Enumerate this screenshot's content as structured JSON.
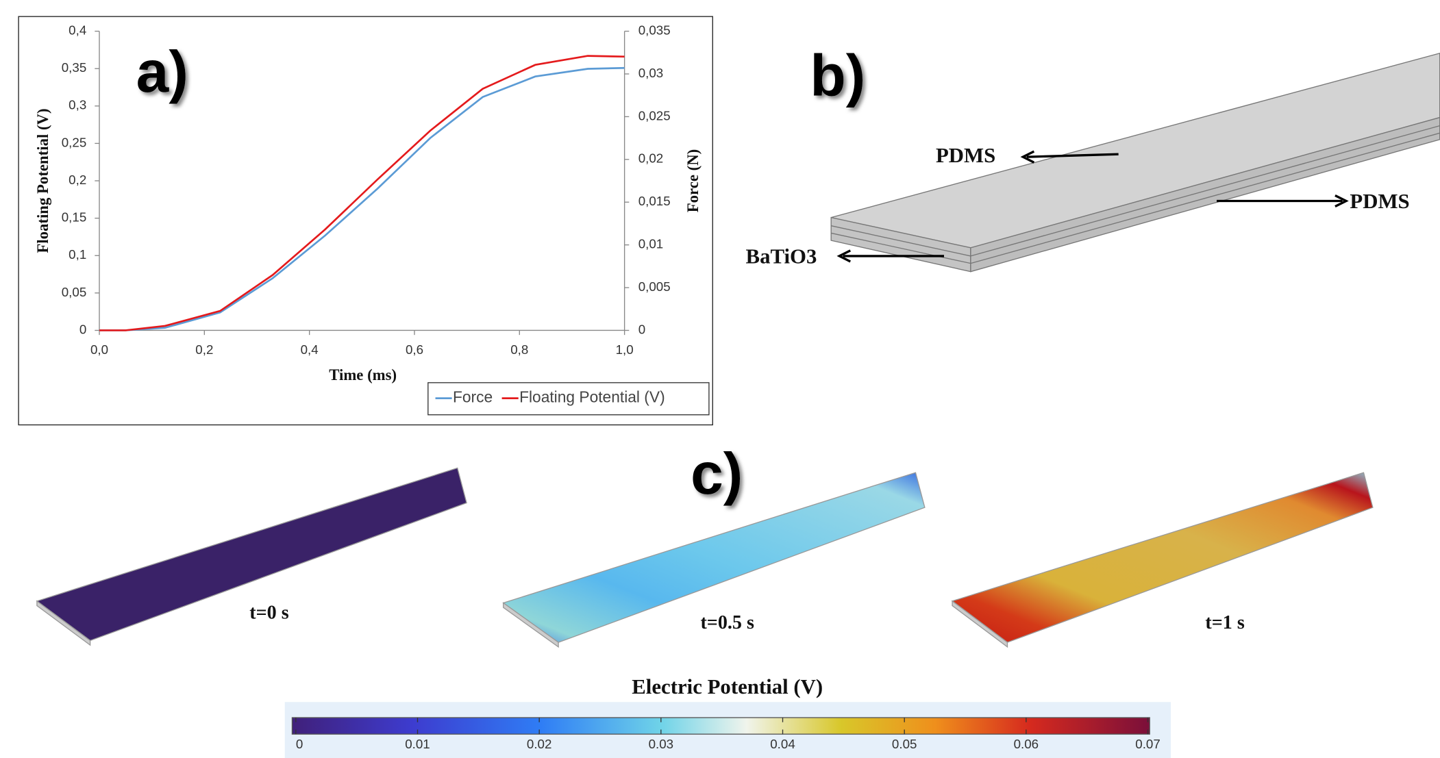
{
  "chart_data": {
    "type": "line",
    "panel_label": "a)",
    "xlabel": "Time (ms)",
    "ylabel": "Floating  Potential (V)",
    "y2label": "Force (N)",
    "x": [
      0,
      0.05,
      0.125,
      0.23,
      0.33,
      0.43,
      0.53,
      0.63,
      0.73,
      0.83,
      0.93,
      1.0
    ],
    "series": [
      {
        "name": "Force",
        "color": "#5b9bd5",
        "axis": "y2",
        "values": [
          0,
          0,
          0.0003,
          0.0021,
          0.0061,
          0.0111,
          0.0166,
          0.0225,
          0.0273,
          0.0297,
          0.0306,
          0.0307
        ]
      },
      {
        "name": "Floating Potential (V)",
        "color": "#e41a1c",
        "values": [
          0,
          0,
          0.006,
          0.026,
          0.074,
          0.135,
          0.202,
          0.267,
          0.323,
          0.355,
          0.367,
          0.366
        ]
      }
    ],
    "xlim": [
      0,
      1.0
    ],
    "xticks": [
      {
        "value": 0,
        "label": "0,0"
      },
      {
        "value": 0.2,
        "label": "0,2"
      },
      {
        "value": 0.4,
        "label": "0,4"
      },
      {
        "value": 0.6,
        "label": "0,6"
      },
      {
        "value": 0.8,
        "label": "0,8"
      },
      {
        "value": 1.0,
        "label": "1,0"
      }
    ],
    "ylim": [
      0,
      0.4
    ],
    "yticks": [
      0,
      {
        "value": 0.05,
        "label": "0,05"
      },
      {
        "value": 0.1,
        "label": "0,1"
      },
      {
        "value": 0.15,
        "label": "0,15"
      },
      {
        "value": 0.2,
        "label": "0,2"
      },
      {
        "value": 0.25,
        "label": "0,25"
      },
      {
        "value": 0.3,
        "label": "0,3"
      },
      {
        "value": 0.35,
        "label": "0,35"
      },
      {
        "value": 0.4,
        "label": "0,4"
      }
    ],
    "y2lim": [
      0,
      0.035
    ],
    "y2ticks": [
      0,
      {
        "value": 0.005,
        "label": "0,005"
      },
      {
        "value": 0.01,
        "label": "0,01"
      },
      {
        "value": 0.015,
        "label": "0,015"
      },
      {
        "value": 0.02,
        "label": "0,02"
      },
      {
        "value": 0.025,
        "label": "0,025"
      },
      {
        "value": 0.03,
        "label": "0,03"
      },
      {
        "value": 0.035,
        "label": "0,035"
      }
    ],
    "legend": "bottom-right",
    "grid": false
  },
  "panel_b": {
    "label": "b)",
    "annotations": [
      "PDMS",
      "PDMS",
      "BaTiO3"
    ]
  },
  "panel_c": {
    "label": "c)",
    "snapshots": [
      "t=0 s",
      "t=0.5 s",
      "t=1 s"
    ],
    "colorbar": {
      "title": "Electric Potential (V)",
      "lim": [
        0,
        0.07
      ],
      "ticks": [
        0,
        0.01,
        0.02,
        0.03,
        0.04,
        0.05,
        0.06,
        0.07
      ]
    }
  }
}
